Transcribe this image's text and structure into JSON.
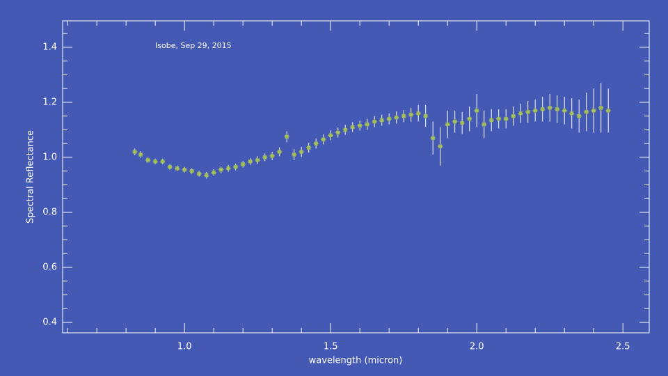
{
  "chart_data": {
    "type": "scatter",
    "annotation": "Isobe, Sep 29, 2015",
    "x_label": "wavelength (micron)",
    "y_label": "Spectral Reflectance",
    "x": [
      0.83,
      0.85,
      0.875,
      0.9,
      0.925,
      0.95,
      0.975,
      1.0,
      1.025,
      1.05,
      1.075,
      1.1,
      1.125,
      1.15,
      1.175,
      1.2,
      1.225,
      1.25,
      1.275,
      1.3,
      1.325,
      1.35,
      1.375,
      1.4,
      1.425,
      1.45,
      1.475,
      1.5,
      1.525,
      1.55,
      1.575,
      1.6,
      1.625,
      1.65,
      1.675,
      1.7,
      1.725,
      1.75,
      1.775,
      1.8,
      1.825,
      1.85,
      1.875,
      1.9,
      1.925,
      1.95,
      1.975,
      2.0,
      2.025,
      2.05,
      2.075,
      2.1,
      2.125,
      2.15,
      2.175,
      2.2,
      2.225,
      2.25,
      2.275,
      2.3,
      2.325,
      2.35,
      2.375,
      2.4,
      2.425,
      2.45
    ],
    "values": [
      1.02,
      1.01,
      0.99,
      0.985,
      0.985,
      0.965,
      0.96,
      0.955,
      0.95,
      0.94,
      0.935,
      0.945,
      0.955,
      0.96,
      0.965,
      0.975,
      0.985,
      0.99,
      1.0,
      1.005,
      1.02,
      1.075,
      1.01,
      1.02,
      1.035,
      1.05,
      1.065,
      1.08,
      1.09,
      1.1,
      1.11,
      1.115,
      1.12,
      1.13,
      1.135,
      1.14,
      1.145,
      1.15,
      1.155,
      1.16,
      1.15,
      1.07,
      1.04,
      1.12,
      1.13,
      1.125,
      1.14,
      1.17,
      1.12,
      1.135,
      1.14,
      1.14,
      1.15,
      1.16,
      1.165,
      1.17,
      1.175,
      1.18,
      1.175,
      1.17,
      1.16,
      1.15,
      1.165,
      1.17,
      1.18,
      1.17
    ],
    "errors": [
      0.012,
      0.012,
      0.01,
      0.01,
      0.01,
      0.01,
      0.01,
      0.01,
      0.01,
      0.01,
      0.012,
      0.012,
      0.012,
      0.012,
      0.012,
      0.012,
      0.012,
      0.014,
      0.014,
      0.015,
      0.016,
      0.02,
      0.02,
      0.018,
      0.018,
      0.018,
      0.018,
      0.018,
      0.018,
      0.018,
      0.018,
      0.018,
      0.02,
      0.02,
      0.02,
      0.02,
      0.022,
      0.022,
      0.025,
      0.03,
      0.04,
      0.06,
      0.07,
      0.05,
      0.04,
      0.04,
      0.045,
      0.06,
      0.05,
      0.04,
      0.035,
      0.035,
      0.035,
      0.035,
      0.04,
      0.04,
      0.045,
      0.05,
      0.05,
      0.05,
      0.055,
      0.06,
      0.07,
      0.08,
      0.09,
      0.08
    ],
    "color": "#a4c05a",
    "error_color": "#ffffff",
    "xlim": [
      0.583,
      2.59
    ],
    "ylim": [
      0.362,
      1.496
    ],
    "xticks": [
      {
        "value": 1.0,
        "label": "1.0"
      },
      1.5,
      {
        "value": 2.0,
        "label": "2.0"
      },
      2.5
    ],
    "yticks": [
      0.4,
      0.6,
      0.8,
      {
        "value": 1.0,
        "label": "1.0"
      },
      1.2,
      1.4
    ],
    "xminorticks": [
      0.6,
      0.7,
      0.8,
      0.9,
      1.1,
      1.2,
      1.3,
      1.4,
      1.6,
      1.7,
      1.8,
      1.9,
      2.1,
      2.2,
      2.3,
      2.4
    ],
    "yminorticks": [
      0.45,
      0.5,
      0.55,
      0.65,
      0.7,
      0.75,
      0.85,
      0.9,
      0.95,
      1.05,
      1.1,
      1.15,
      1.25,
      1.3,
      1.35,
      1.45
    ]
  }
}
